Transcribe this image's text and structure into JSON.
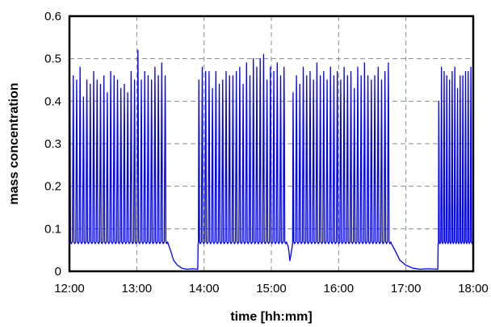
{
  "chart_data": {
    "type": "line",
    "title": "",
    "xlabel": "time [hh:mm]",
    "ylabel": "mass concentration",
    "x_ticks": [
      "12:00",
      "13:00",
      "14:00",
      "15:00",
      "16:00",
      "17:00",
      "18:00"
    ],
    "y_ticks": [
      "0",
      "0.1",
      "0.2",
      "0.3",
      "0.4",
      "0.5",
      "0.6"
    ],
    "xlim": [
      "12:00",
      "18:00"
    ],
    "ylim": [
      0,
      0.6
    ],
    "grid": "dashed",
    "legend": "none",
    "series_color": "#0000ff",
    "series": [
      {
        "segments": [
          {
            "start": "12:00",
            "end": "13:28",
            "baseline": 0.065,
            "peaks": [
              0.44,
              0.46,
              0.45,
              0.48,
              0.41,
              0.45,
              0.44,
              0.47,
              0.45,
              0.44,
              0.46,
              0.42,
              0.47,
              0.46,
              0.45,
              0.43,
              0.44,
              0.42,
              0.47,
              0.45,
              0.52,
              0.45,
              0.47,
              0.46,
              0.45,
              0.48,
              0.46,
              0.49,
              0.46
            ]
          },
          {
            "start": "13:55",
            "end": "15:14",
            "baseline": 0.065,
            "peaks": [
              0.45,
              0.48,
              0.47,
              0.47,
              0.43,
              0.47,
              0.44,
              0.45,
              0.47,
              0.46,
              0.46,
              0.47,
              0.48,
              0.44,
              0.49,
              0.46,
              0.5,
              0.48,
              0.5,
              0.51,
              0.45,
              0.48,
              0.47,
              0.49,
              0.46,
              0.48
            ]
          },
          {
            "start": "15:19",
            "end": "16:47",
            "baseline": 0.065,
            "peaks": [
              0.42,
              0.46,
              0.44,
              0.48,
              0.46,
              0.47,
              0.45,
              0.49,
              0.46,
              0.47,
              0.45,
              0.48,
              0.46,
              0.47,
              0.45,
              0.48,
              0.46,
              0.47,
              0.43,
              0.48,
              0.46,
              0.49,
              0.46,
              0.45,
              0.46,
              0.48,
              0.45,
              0.47,
              0.49
            ]
          },
          {
            "start": "17:29",
            "end": "18:00",
            "baseline": 0.065,
            "peaks": [
              0.4,
              0.48,
              0.47,
              0.46,
              0.45,
              0.47,
              0.48,
              0.43,
              0.46,
              0.46,
              0.47,
              0.47,
              0.48
            ]
          }
        ],
        "low_periods": [
          {
            "start": "13:28",
            "end": "13:55",
            "from": 0.065,
            "to": 0.005
          },
          {
            "start": "15:14",
            "end": "15:19",
            "min": 0.025
          },
          {
            "start": "16:47",
            "end": "17:29",
            "from": 0.065,
            "to": 0.005
          }
        ]
      }
    ]
  }
}
